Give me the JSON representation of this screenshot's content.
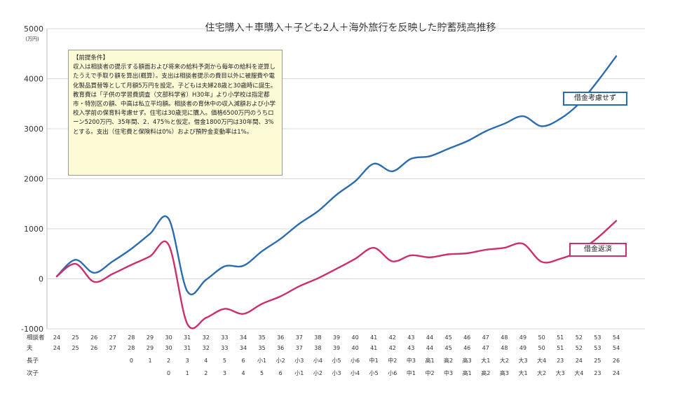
{
  "chart_data": {
    "type": "line",
    "title": "住宅購入＋車購入＋子ども2人＋海外旅行を反映した貯蓄残高推移",
    "ylabel": "(万円)",
    "ylim": [
      -1000,
      5000
    ],
    "yticks": [
      -1000,
      0,
      1000,
      2000,
      3000,
      4000,
      5000
    ],
    "x": [
      1,
      2,
      3,
      4,
      5,
      6,
      7,
      8,
      9,
      10,
      11,
      12,
      13,
      14,
      15,
      16,
      17,
      18,
      19,
      20,
      21,
      22,
      23,
      24,
      25,
      26,
      27,
      28,
      29,
      30,
      31
    ],
    "series": [
      {
        "name": "借金考慮せず",
        "color": "#2b6cb0",
        "values": [
          50,
          380,
          120,
          350,
          600,
          900,
          1200,
          -250,
          -20,
          250,
          260,
          550,
          800,
          1100,
          1350,
          1680,
          1950,
          2300,
          2150,
          2400,
          2450,
          2600,
          2750,
          2950,
          3100,
          3250,
          3050,
          3200,
          3500,
          3950,
          4450
        ]
      },
      {
        "name": "借金返済",
        "color": "#cc2e6e",
        "values": [
          50,
          300,
          -60,
          100,
          280,
          450,
          680,
          -900,
          -780,
          -600,
          -700,
          -500,
          -350,
          -150,
          10,
          200,
          400,
          620,
          350,
          470,
          430,
          490,
          510,
          580,
          620,
          700,
          340,
          400,
          550,
          820,
          1160
        ]
      }
    ],
    "table": {
      "row_labels": [
        "相談者",
        "夫",
        "長子",
        "次子"
      ],
      "rows": [
        [
          "24",
          "25",
          "26",
          "27",
          "28",
          "29",
          "30",
          "31",
          "32",
          "33",
          "34",
          "35",
          "36",
          "37",
          "38",
          "39",
          "40",
          "41",
          "42",
          "43",
          "44",
          "45",
          "46",
          "47",
          "48",
          "49",
          "50",
          "51",
          "52",
          "53",
          "54"
        ],
        [
          "24",
          "25",
          "26",
          "27",
          "28",
          "29",
          "30",
          "31",
          "32",
          "33",
          "34",
          "35",
          "36",
          "37",
          "38",
          "39",
          "40",
          "41",
          "42",
          "43",
          "44",
          "45",
          "46",
          "47",
          "48",
          "49",
          "50",
          "51",
          "52",
          "53",
          "54"
        ],
        [
          "",
          "",
          "",
          "",
          "0",
          "1",
          "2",
          "3",
          "4",
          "5",
          "6",
          "小1",
          "小2",
          "小3",
          "小4",
          "小5",
          "小6",
          "中1",
          "中2",
          "中3",
          "高1",
          "高2",
          "高3",
          "大1",
          "大2",
          "大3",
          "大4",
          "23",
          "24",
          "25",
          "26"
        ],
        [
          "",
          "",
          "",
          "",
          "",
          "",
          "0",
          "1",
          "2",
          "3",
          "4",
          "5",
          "6",
          "小1",
          "小2",
          "小3",
          "小4",
          "小5",
          "小6",
          "中1",
          "中2",
          "中3",
          "高1",
          "高2",
          "高3",
          "大1",
          "大2",
          "大3",
          "大4",
          "23",
          "24"
        ]
      ]
    }
  },
  "note": {
    "title": "【前提条件】",
    "text": "収入は相談者の提示する額面および将来の給料予測から毎年の給料を逆算したうえで手取り額を算出(概算）。支出は相談者提示の費目以外に被服費や電化製品買替等として月額5万円を設定。子どもは夫婦28歳と30歳時に誕生。教育費は「子供の学習費調査（文部科学省）H30年」より小学校は指定都市・特別区の額、中高は私立平均額。相談者の育休中の収入減額および小学校入学前の保育料考慮せず。住宅は30歳児に購入。価格6500万円のうちローン5200万円、35年間、2．475％と仮定。借金1800万円は30年間、3%とする。支出（住宅費と保険料は0%）および預貯金変動率は1%。"
  },
  "labels": {
    "blue": "借金考慮せず",
    "pink": "借金返済"
  }
}
